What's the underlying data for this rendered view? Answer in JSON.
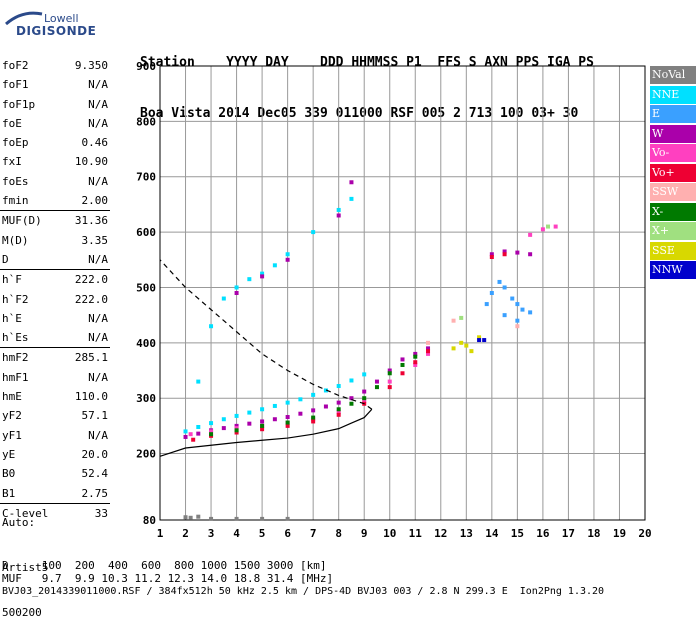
{
  "logo": {
    "line1": "Lowell",
    "line2": "DIGISONDE"
  },
  "header": {
    "row1": "Station    YYYY DAY    DDD HHMMSS P1  FFS S AXN PPS IGA PS",
    "row2": "Boa Vista 2014 Dec05 339 011000 RSF 005 2 713 100 03+ 30"
  },
  "params": [
    {
      "label": "foF2",
      "value": "9.350"
    },
    {
      "label": "foF1",
      "value": "N/A"
    },
    {
      "label": "foF1p",
      "value": "N/A"
    },
    {
      "label": "foE",
      "value": "N/A"
    },
    {
      "label": "foEp",
      "value": "0.46"
    },
    {
      "label": "fxI",
      "value": "10.90"
    },
    {
      "label": "foEs",
      "value": "N/A"
    },
    {
      "label": "fmin",
      "value": "2.00"
    },
    {
      "label": "MUF(D)",
      "value": "31.36"
    },
    {
      "label": "M(D)",
      "value": "3.35"
    },
    {
      "label": "D",
      "value": "N/A"
    },
    {
      "label": "h`F",
      "value": "222.0"
    },
    {
      "label": "h`F2",
      "value": "222.0"
    },
    {
      "label": "h`E",
      "value": "N/A"
    },
    {
      "label": "h`Es",
      "value": "N/A"
    },
    {
      "label": "hmF2",
      "value": "285.1"
    },
    {
      "label": "hmF1",
      "value": "N/A"
    },
    {
      "label": "hmE",
      "value": "110.0"
    },
    {
      "label": "yF2",
      "value": "57.1"
    },
    {
      "label": "yF1",
      "value": "N/A"
    },
    {
      "label": "yE",
      "value": "20.0"
    },
    {
      "label": "B0",
      "value": "52.4"
    },
    {
      "label": "B1",
      "value": "2.75"
    },
    {
      "label": "C-level",
      "value": "33"
    }
  ],
  "auto": {
    "line1": "Auto:",
    "line2": "Artist5",
    "line3": "500200"
  },
  "footer": {
    "d_row": "D     100  200  400  600  800 1000 1500 3000 [km]",
    "muf_row": "MUF   9.7  9.9 10.3 11.2 12.3 14.0 18.8 31.4 [MHz]",
    "file_row": "BVJ03_2014339011000.RSF / 384fx512h 50 kHz 2.5 km / DPS-4D BVJ03 003 / 2.8 N 299.3 E  Ion2Png 1.3.20"
  },
  "colors": {
    "NoVal": "#808080",
    "NNE": "#00e0ff",
    "E": "#3aa0ff",
    "W": "#aa00aa",
    "Vo-": "#ff40c0",
    "Vo+": "#ee0033",
    "SSW": "#ffb0b0",
    "X-": "#007a00",
    "X+": "#a0e080",
    "SSE": "#d8d800",
    "NNW": "#0000cc"
  },
  "chart_data": {
    "type": "scatter",
    "xlim": [
      1,
      20
    ],
    "ylim": [
      80,
      900
    ],
    "xticks": [
      1,
      2,
      3,
      4,
      5,
      6,
      7,
      8,
      9,
      10,
      11,
      12,
      13,
      14,
      15,
      16,
      17,
      18,
      19,
      20
    ],
    "yticks": [
      80,
      200,
      300,
      400,
      500,
      600,
      700,
      800,
      900
    ],
    "grid": true,
    "legend_position": "right",
    "legend": [
      "NoVal",
      "NNE",
      "E",
      "W",
      "Vo-",
      "Vo+",
      "SSW",
      "X-",
      "X+",
      "SSE",
      "NNW"
    ],
    "series": [
      {
        "name": "NNE",
        "points": [
          [
            2.0,
            240
          ],
          [
            2.5,
            248
          ],
          [
            3.0,
            255
          ],
          [
            3.5,
            262
          ],
          [
            4.0,
            268
          ],
          [
            4.5,
            274
          ],
          [
            5.0,
            280
          ],
          [
            5.5,
            286
          ],
          [
            6.0,
            292
          ],
          [
            6.5,
            298
          ],
          [
            7.0,
            306
          ],
          [
            7.5,
            314
          ],
          [
            8.0,
            322
          ],
          [
            8.5,
            332
          ],
          [
            9.0,
            343
          ],
          [
            2.5,
            330
          ],
          [
            3.0,
            430
          ],
          [
            3.5,
            480
          ],
          [
            4.0,
            500
          ],
          [
            4.5,
            515
          ],
          [
            5.0,
            525
          ],
          [
            5.5,
            540
          ],
          [
            6.0,
            560
          ],
          [
            7.0,
            600
          ],
          [
            8.0,
            640
          ],
          [
            8.5,
            660
          ]
        ]
      },
      {
        "name": "W",
        "points": [
          [
            2.0,
            230
          ],
          [
            2.5,
            236
          ],
          [
            3.0,
            242
          ],
          [
            3.5,
            246
          ],
          [
            4.0,
            250
          ],
          [
            4.5,
            254
          ],
          [
            5.0,
            258
          ],
          [
            5.5,
            262
          ],
          [
            6.0,
            266
          ],
          [
            6.5,
            272
          ],
          [
            7.0,
            278
          ],
          [
            7.5,
            285
          ],
          [
            8.0,
            292
          ],
          [
            8.5,
            300
          ],
          [
            9.0,
            312
          ],
          [
            9.5,
            330
          ],
          [
            10.0,
            350
          ],
          [
            10.5,
            370
          ],
          [
            11.0,
            380
          ],
          [
            11.5,
            390
          ],
          [
            4.0,
            490
          ],
          [
            5.0,
            520
          ],
          [
            6.0,
            550
          ],
          [
            8.0,
            630
          ],
          [
            8.5,
            690
          ],
          [
            14.0,
            560
          ],
          [
            14.5,
            565
          ],
          [
            15.0,
            563
          ],
          [
            15.5,
            560
          ]
        ]
      },
      {
        "name": "Vo-",
        "points": [
          [
            2.2,
            235
          ],
          [
            3.0,
            240
          ],
          [
            4.0,
            246
          ],
          [
            5.0,
            250
          ],
          [
            6.0,
            256
          ],
          [
            7.0,
            262
          ],
          [
            8.0,
            275
          ],
          [
            9.0,
            295
          ],
          [
            10.0,
            330
          ],
          [
            11.0,
            360
          ],
          [
            11.5,
            380
          ],
          [
            15.5,
            595
          ],
          [
            16.0,
            605
          ],
          [
            16.5,
            610
          ]
        ]
      },
      {
        "name": "Vo+",
        "points": [
          [
            2.3,
            225
          ],
          [
            3.0,
            232
          ],
          [
            4.0,
            238
          ],
          [
            5.0,
            244
          ],
          [
            6.0,
            250
          ],
          [
            7.0,
            258
          ],
          [
            8.0,
            270
          ],
          [
            9.0,
            290
          ],
          [
            10.0,
            320
          ],
          [
            10.5,
            345
          ],
          [
            11.0,
            365
          ],
          [
            11.5,
            385
          ],
          [
            14.0,
            555
          ],
          [
            14.5,
            560
          ]
        ]
      },
      {
        "name": "X-",
        "points": [
          [
            3.0,
            235
          ],
          [
            4.0,
            242
          ],
          [
            5.0,
            250
          ],
          [
            6.0,
            256
          ],
          [
            7.0,
            265
          ],
          [
            8.0,
            280
          ],
          [
            8.5,
            290
          ],
          [
            9.0,
            300
          ],
          [
            9.5,
            320
          ],
          [
            10.0,
            345
          ],
          [
            10.5,
            360
          ],
          [
            11.0,
            375
          ]
        ]
      },
      {
        "name": "E",
        "points": [
          [
            13.8,
            470
          ],
          [
            14.0,
            490
          ],
          [
            14.3,
            510
          ],
          [
            14.5,
            500
          ],
          [
            14.8,
            480
          ],
          [
            15.0,
            470
          ],
          [
            15.2,
            460
          ],
          [
            15.5,
            455
          ],
          [
            14.5,
            450
          ],
          [
            15.0,
            440
          ]
        ]
      },
      {
        "name": "SSE",
        "points": [
          [
            12.5,
            390
          ],
          [
            12.8,
            400
          ],
          [
            13.0,
            395
          ],
          [
            13.2,
            385
          ],
          [
            13.5,
            410
          ]
        ]
      },
      {
        "name": "NNW",
        "points": [
          [
            13.5,
            405
          ],
          [
            13.7,
            405
          ]
        ]
      },
      {
        "name": "SSW",
        "points": [
          [
            11.5,
            400
          ],
          [
            12.5,
            440
          ],
          [
            15.0,
            430
          ]
        ]
      },
      {
        "name": "X+",
        "points": [
          [
            12.8,
            445
          ],
          [
            16.2,
            610
          ]
        ]
      },
      {
        "name": "NoVal",
        "points": [
          [
            2.0,
            85
          ],
          [
            2.2,
            84
          ],
          [
            2.5,
            86
          ],
          [
            3.0,
            82
          ],
          [
            4.0,
            82
          ],
          [
            5.0,
            82
          ],
          [
            6.0,
            82
          ]
        ]
      }
    ],
    "profile": [
      [
        1.0,
        195
      ],
      [
        2.0,
        210
      ],
      [
        3.0,
        215
      ],
      [
        4.0,
        220
      ],
      [
        5.0,
        224
      ],
      [
        6.0,
        228
      ],
      [
        7.0,
        235
      ],
      [
        8.0,
        245
      ],
      [
        8.5,
        255
      ],
      [
        9.0,
        265
      ],
      [
        9.3,
        280
      ],
      [
        9.0,
        290
      ],
      [
        8.0,
        305
      ],
      [
        7.0,
        325
      ],
      [
        6.0,
        350
      ],
      [
        5.0,
        380
      ],
      [
        4.0,
        420
      ],
      [
        3.0,
        460
      ],
      [
        2.0,
        500
      ],
      [
        1.0,
        550
      ]
    ]
  }
}
